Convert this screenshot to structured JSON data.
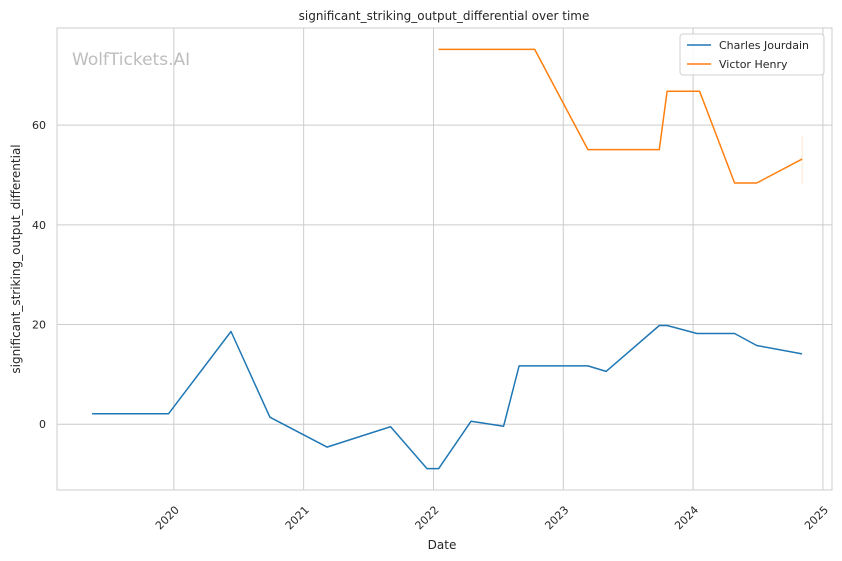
{
  "chart_data": {
    "type": "line",
    "title": "significant_striking_output_differential over time",
    "xlabel": "Date",
    "ylabel": "significant_striking_output_differential",
    "watermark": "WolfTickets.AI",
    "xlim": [
      2019.1,
      2025.07
    ],
    "ylim": [
      -13.2,
      79.5
    ],
    "x_ticks": [
      2020,
      2021,
      2022,
      2023,
      2024,
      2025
    ],
    "x_tick_labels": [
      "2020",
      "2021",
      "2022",
      "2023",
      "2024",
      "2025"
    ],
    "y_ticks": [
      0,
      20,
      40,
      60
    ],
    "y_tick_labels": [
      "0",
      "20",
      "40",
      "60"
    ],
    "grid": true,
    "legend_position": "top-right",
    "series": [
      {
        "name": "Charles Jourdain",
        "color": "#1f77b4",
        "x": [
          2019.37,
          2019.96,
          2020.44,
          2020.74,
          2021.18,
          2021.67,
          2021.95,
          2022.04,
          2022.29,
          2022.54,
          2022.66,
          2023.19,
          2023.33,
          2023.74,
          2023.8,
          2024.03,
          2024.32,
          2024.49,
          2024.84
        ],
        "y": [
          2.1,
          2.1,
          18.6,
          1.4,
          -4.6,
          -0.5,
          -8.9,
          -8.9,
          0.6,
          -0.4,
          11.7,
          11.7,
          10.6,
          19.8,
          19.8,
          18.2,
          18.2,
          15.8,
          14.1
        ]
      },
      {
        "name": "Victor Henry",
        "color": "#ff7f0e",
        "x": [
          2022.04,
          2022.78,
          2023.19,
          2023.74,
          2023.8,
          2024.05,
          2024.32,
          2024.49,
          2024.84
        ],
        "y": [
          75.2,
          75.2,
          55.1,
          55.1,
          66.8,
          66.8,
          48.4,
          48.4,
          53.2
        ]
      }
    ]
  }
}
